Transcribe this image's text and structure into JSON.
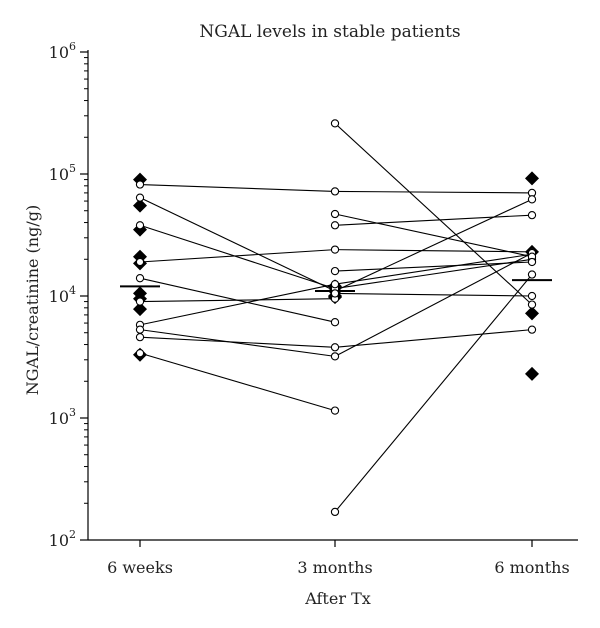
{
  "chart_data": {
    "type": "scatter",
    "title": "NGAL levels in stable patients",
    "xlabel": "After Tx",
    "ylabel": "NGAL/creatinine (ng/g)",
    "y_scale": "log",
    "ylim": [
      100,
      1000000
    ],
    "yticks": [
      {
        "value": 100,
        "base": "10",
        "exp": "2"
      },
      {
        "value": 1000,
        "base": "10",
        "exp": "3"
      },
      {
        "value": 10000,
        "base": "10",
        "exp": "4"
      },
      {
        "value": 100000,
        "base": "10",
        "exp": "5"
      },
      {
        "value": 1000000,
        "base": "10",
        "exp": "6"
      }
    ],
    "categories": [
      "6 weeks",
      "3 months",
      "6 months"
    ],
    "patients": [
      [
        82000,
        72000,
        70000
      ],
      [
        64000,
        11000,
        62000
      ],
      [
        38000,
        11500,
        20000
      ],
      [
        19000,
        24000,
        23000
      ],
      [
        14000,
        6100,
        null
      ],
      [
        9000,
        9500,
        null
      ],
      [
        5800,
        12500,
        22000
      ],
      [
        5300,
        3200,
        22500
      ],
      [
        4600,
        3800,
        5300
      ],
      [
        3400,
        1150,
        null
      ],
      [
        null,
        260000,
        8500
      ],
      [
        null,
        47000,
        21000
      ],
      [
        null,
        38000,
        46000
      ],
      [
        null,
        16000,
        19000
      ],
      [
        null,
        170,
        15000
      ],
      [
        null,
        10500,
        10000
      ]
    ],
    "diamonds": [
      [
        90000,
        55000,
        35000,
        21000,
        18500,
        10500,
        9500,
        7800,
        3300
      ],
      [
        12000,
        11000,
        10000,
        9800
      ],
      [
        92000,
        23000,
        7200,
        2300
      ]
    ],
    "medians": [
      12000,
      11000,
      13500
    ]
  }
}
